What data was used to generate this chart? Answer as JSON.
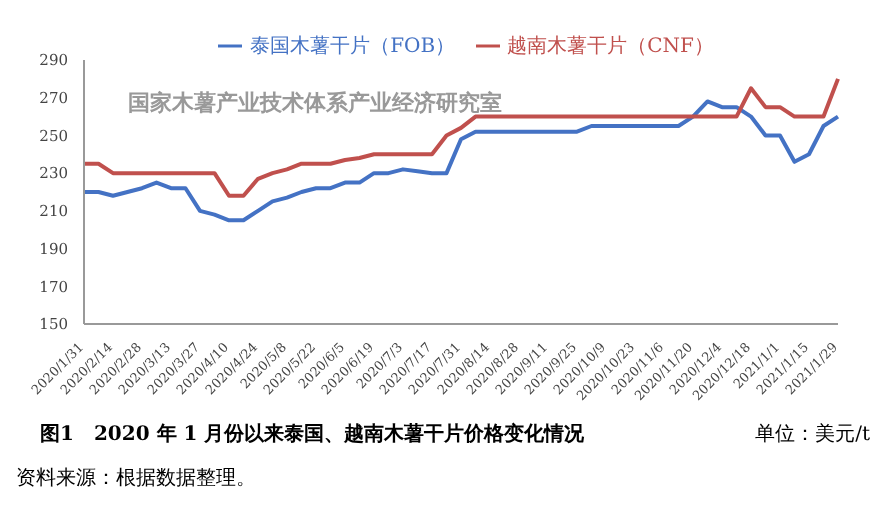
{
  "chart_data": {
    "type": "line",
    "title": "图1　2020 年 1 月份以来泰国、越南木薯干片价格变化情况",
    "categories": [
      "2020/1/31",
      null,
      "2020/2/14",
      null,
      "2020/2/28",
      null,
      "2020/3/13",
      null,
      "2020/3/27",
      null,
      "2020/4/10",
      null,
      "2020/4/24",
      null,
      "2020/5/8",
      null,
      "2020/5/22",
      null,
      "2020/6/5",
      null,
      "2020/6/19",
      null,
      "2020/7/3",
      null,
      "2020/7/17",
      null,
      "2020/7/31",
      null,
      "2020/8/14",
      null,
      "2020/8/28",
      null,
      "2020/9/11",
      null,
      "2020/9/25",
      null,
      "2020/10/9",
      null,
      "2020/10/23",
      null,
      "2020/11/6",
      null,
      "2020/11/20",
      null,
      "2020/12/4",
      null,
      "2020/12/18",
      null,
      "2021/1/1",
      null,
      "2021/1/15",
      null,
      "2021/1/29"
    ],
    "series": [
      {
        "name": "泰国木薯干片（FOB）",
        "color": "#4472c4",
        "values": [
          220,
          220,
          218,
          220,
          222,
          225,
          222,
          222,
          210,
          208,
          205,
          205,
          210,
          215,
          217,
          220,
          222,
          222,
          225,
          225,
          230,
          230,
          232,
          231,
          230,
          230,
          248,
          252,
          252,
          252,
          252,
          252,
          252,
          252,
          252,
          255,
          255,
          255,
          255,
          255,
          255,
          255,
          260,
          268,
          265,
          265,
          260,
          250,
          250,
          236,
          240,
          255,
          260
        ]
      },
      {
        "name": "越南木薯干片（CNF）",
        "color": "#c0504d",
        "values": [
          235,
          235,
          230,
          230,
          230,
          230,
          230,
          230,
          230,
          230,
          218,
          218,
          227,
          230,
          232,
          235,
          235,
          235,
          237,
          238,
          240,
          240,
          240,
          240,
          240,
          250,
          254,
          260,
          260,
          260,
          260,
          260,
          260,
          260,
          260,
          260,
          260,
          260,
          260,
          260,
          260,
          260,
          260,
          260,
          260,
          260,
          275,
          265,
          265,
          260,
          260,
          260,
          280
        ]
      }
    ],
    "ylim": [
      150,
      290
    ],
    "yticks": [
      150,
      170,
      190,
      210,
      230,
      250,
      270,
      290
    ],
    "grid": false,
    "legend": "top",
    "marker": "none",
    "line_style": "solid",
    "annotations": [
      "单位：美元/t",
      "资料来源：根据数据整理。",
      "国家木薯产业技术体系产业经济研究室"
    ]
  }
}
